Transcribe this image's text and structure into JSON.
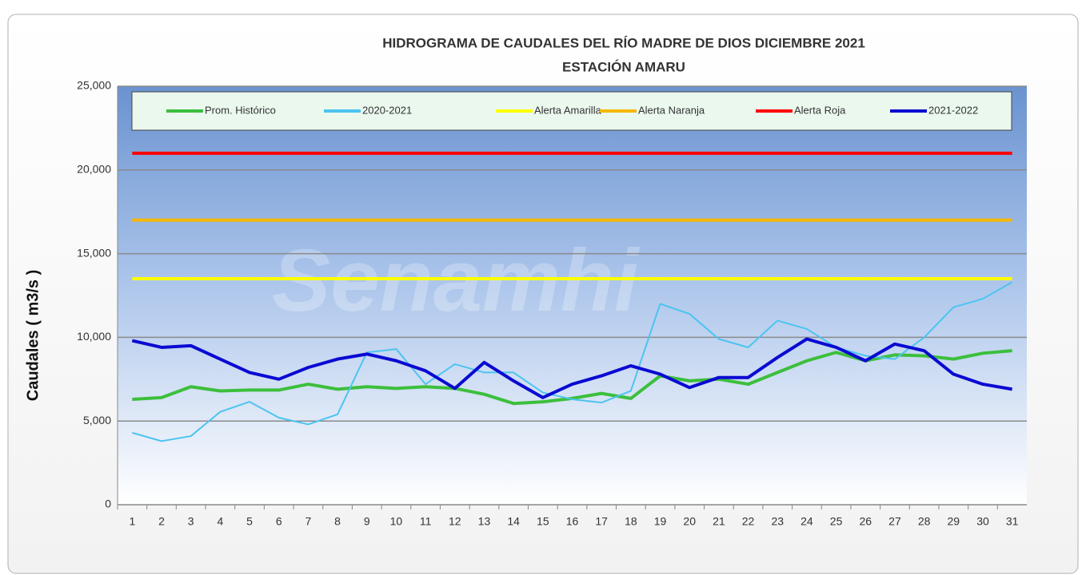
{
  "chart_data": {
    "type": "line",
    "title": "HIDROGRAMA DE CAUDALES DEL RÍO MADRE DE DIOS DICIEMBRE 2021",
    "subtitle": "ESTACIÓN AMARU",
    "ylabel": "Caudales ( m3/s )",
    "watermark": "Senamhi",
    "categories": [
      "1",
      "2",
      "3",
      "4",
      "5",
      "6",
      "7",
      "8",
      "9",
      "10",
      "11",
      "12",
      "13",
      "14",
      "15",
      "16",
      "17",
      "18",
      "19",
      "20",
      "21",
      "22",
      "23",
      "24",
      "25",
      "26",
      "27",
      "28",
      "29",
      "30",
      "31"
    ],
    "series": [
      {
        "name": "Prom. Histórico",
        "color": "#3cbf3c",
        "width": 4,
        "values": [
          6300,
          6400,
          7050,
          6800,
          6850,
          6850,
          7200,
          6900,
          7050,
          6950,
          7050,
          6950,
          6600,
          6050,
          6150,
          6350,
          6650,
          6350,
          7700,
          7400,
          7500,
          7200,
          7900,
          8600,
          9100,
          8600,
          8950,
          8900,
          8700,
          9050,
          9200
        ]
      },
      {
        "name": "2020-2021",
        "color": "#4cc4f0",
        "width": 2,
        "values": [
          4300,
          3800,
          4100,
          5550,
          6150,
          5200,
          4800,
          5400,
          9100,
          9300,
          7200,
          8400,
          7900,
          7900,
          6700,
          6300,
          6100,
          6800,
          12000,
          11400,
          9900,
          9400,
          11000,
          10500,
          9400,
          8900,
          8700,
          10000,
          11800,
          12300,
          13300
        ]
      },
      {
        "name": "Alerta Amarilla",
        "color": "#ffff00",
        "width": 4,
        "values": [
          13500,
          13500,
          13500,
          13500,
          13500,
          13500,
          13500,
          13500,
          13500,
          13500,
          13500,
          13500,
          13500,
          13500,
          13500,
          13500,
          13500,
          13500,
          13500,
          13500,
          13500,
          13500,
          13500,
          13500,
          13500,
          13500,
          13500,
          13500,
          13500,
          13500,
          13500
        ]
      },
      {
        "name": "Alerta Naranja",
        "color": "#f5b800",
        "width": 4,
        "values": [
          17000,
          17000,
          17000,
          17000,
          17000,
          17000,
          17000,
          17000,
          17000,
          17000,
          17000,
          17000,
          17000,
          17000,
          17000,
          17000,
          17000,
          17000,
          17000,
          17000,
          17000,
          17000,
          17000,
          17000,
          17000,
          17000,
          17000,
          17000,
          17000,
          17000,
          17000
        ]
      },
      {
        "name": "Alerta Roja",
        "color": "#ff0000",
        "width": 4,
        "values": [
          21000,
          21000,
          21000,
          21000,
          21000,
          21000,
          21000,
          21000,
          21000,
          21000,
          21000,
          21000,
          21000,
          21000,
          21000,
          21000,
          21000,
          21000,
          21000,
          21000,
          21000,
          21000,
          21000,
          21000,
          21000,
          21000,
          21000,
          21000,
          21000,
          21000,
          21000
        ]
      },
      {
        "name": "2021-2022",
        "color": "#0a0ad2",
        "width": 4,
        "values": [
          9800,
          9400,
          9500,
          8700,
          7900,
          7500,
          8200,
          8700,
          9000,
          8600,
          8000,
          6950,
          8500,
          7400,
          6400,
          7200,
          7700,
          8300,
          7800,
          7000,
          7600,
          7600,
          8800,
          9900,
          9400,
          8600,
          9600,
          9200,
          7800,
          7200,
          6900
        ]
      }
    ],
    "ylim": [
      0,
      25000
    ],
    "yticks": [
      0,
      {
        "value": 5000,
        "label": "5,000"
      },
      {
        "value": 10000,
        "label": "10,000"
      },
      {
        "value": 15000,
        "label": "15,000"
      },
      {
        "value": 20000,
        "label": "20,000"
      },
      {
        "value": 25000,
        "label": "25,000"
      }
    ],
    "grid": true
  }
}
